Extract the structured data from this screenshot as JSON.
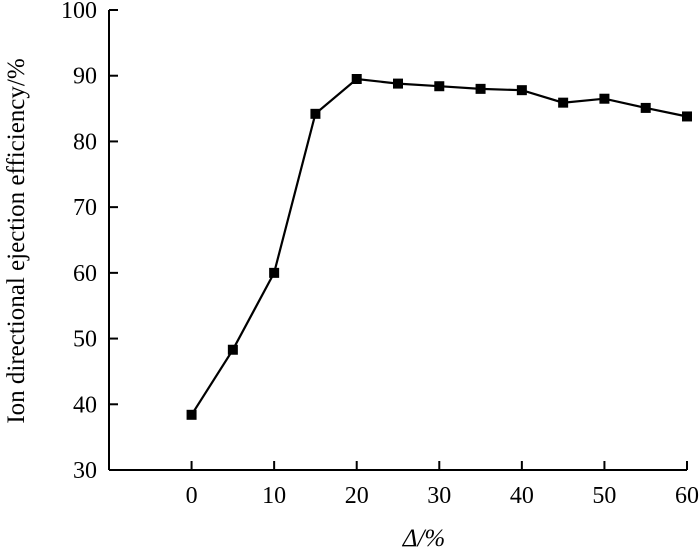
{
  "chart_data": {
    "type": "line",
    "xlabel": "Δ/%",
    "ylabel": "Ion directional ejection efficiency/%",
    "xlim": [
      -10,
      60
    ],
    "ylim": [
      30,
      100
    ],
    "xticks": [
      0,
      10,
      20,
      30,
      40,
      50,
      60
    ],
    "yticks": [
      30,
      40,
      50,
      60,
      70,
      80,
      90,
      100
    ],
    "grid": false,
    "series": [
      {
        "marker": "square",
        "color": "#000000",
        "x": [
          0,
          5,
          10,
          15,
          20,
          25,
          30,
          35,
          40,
          45,
          50,
          55,
          60
        ],
        "y": [
          38.4,
          48.3,
          60.0,
          84.2,
          89.5,
          88.8,
          88.4,
          88.0,
          87.8,
          85.9,
          86.5,
          85.1,
          83.8
        ]
      }
    ]
  }
}
